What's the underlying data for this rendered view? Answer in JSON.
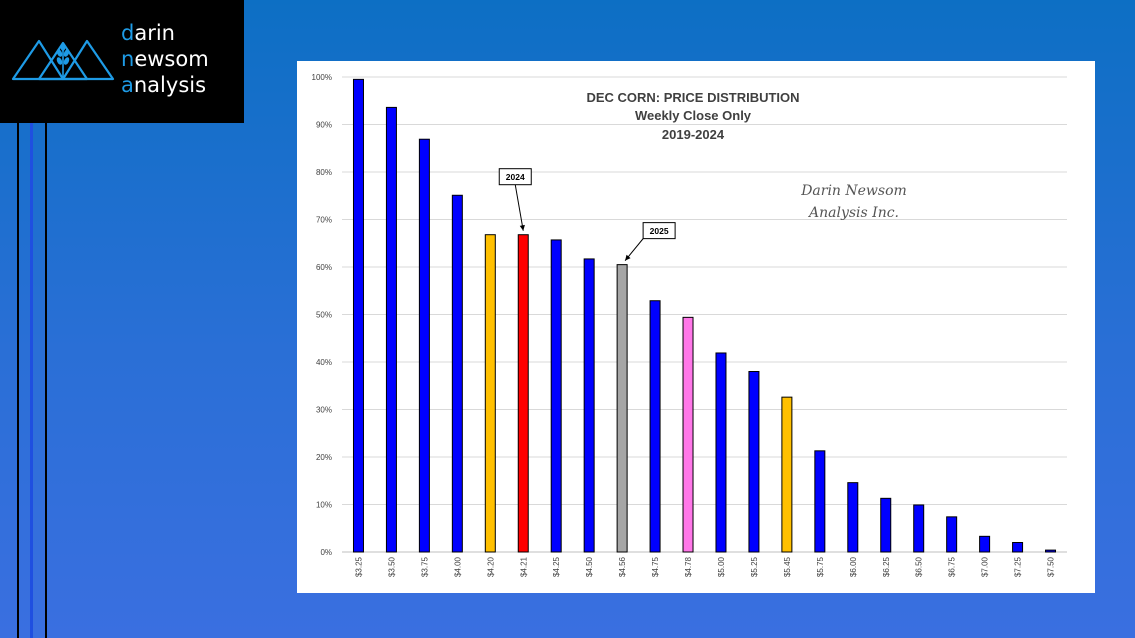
{
  "logo": {
    "line1": {
      "first": "d",
      "rest": "arin"
    },
    "line2": {
      "first": "n",
      "mid": "ew",
      "rest": "som"
    },
    "line3": {
      "first": "a",
      "rest": "nalysis"
    },
    "accent_color": "#1e9be6",
    "icon": "mountain-wheat-icon"
  },
  "chart_data": {
    "type": "bar",
    "title": "DEC CORN: PRICE DISTRIBUTION",
    "subtitle": "Weekly Close Only",
    "subtitle2": "2019-2024",
    "watermark_line1": "Darin Newsom",
    "watermark_line2": "Analysis Inc.",
    "categories": [
      "$3.25",
      "$3.50",
      "$3.75",
      "$4.00",
      "$4.20",
      "$4.21",
      "$4.25",
      "$4.50",
      "$4.56",
      "$4.75",
      "$4.78",
      "$5.00",
      "$5.25",
      "$5.45",
      "$5.75",
      "$6.00",
      "$6.25",
      "$6.50",
      "$6.75",
      "$7.00",
      "$7.25",
      "$7.50"
    ],
    "values": [
      99.5,
      93.6,
      86.9,
      75.1,
      66.8,
      66.8,
      65.7,
      61.7,
      60.5,
      52.9,
      49.4,
      41.9,
      38.0,
      32.6,
      21.3,
      14.6,
      11.3,
      9.9,
      7.4,
      3.3,
      2.0,
      0.4
    ],
    "colors": [
      "#0000ff",
      "#0000ff",
      "#0000ff",
      "#0000ff",
      "#ffc000",
      "#ff0000",
      "#0000ff",
      "#0000ff",
      "#a6a6a6",
      "#0000ff",
      "#ff77e8",
      "#0000ff",
      "#0000ff",
      "#ffc000",
      "#0000ff",
      "#0000ff",
      "#0000ff",
      "#0000ff",
      "#0000ff",
      "#0000ff",
      "#0000ff",
      "#0000ff"
    ],
    "ylim": [
      0,
      100
    ],
    "yticks": [
      "0%",
      "10%",
      "20%",
      "30%",
      "40%",
      "50%",
      "60%",
      "70%",
      "80%",
      "90%",
      "100%"
    ],
    "grid": true,
    "annotations": [
      {
        "text": "2024",
        "category": "$4.21"
      },
      {
        "text": "2025",
        "category": "$4.56"
      }
    ]
  }
}
